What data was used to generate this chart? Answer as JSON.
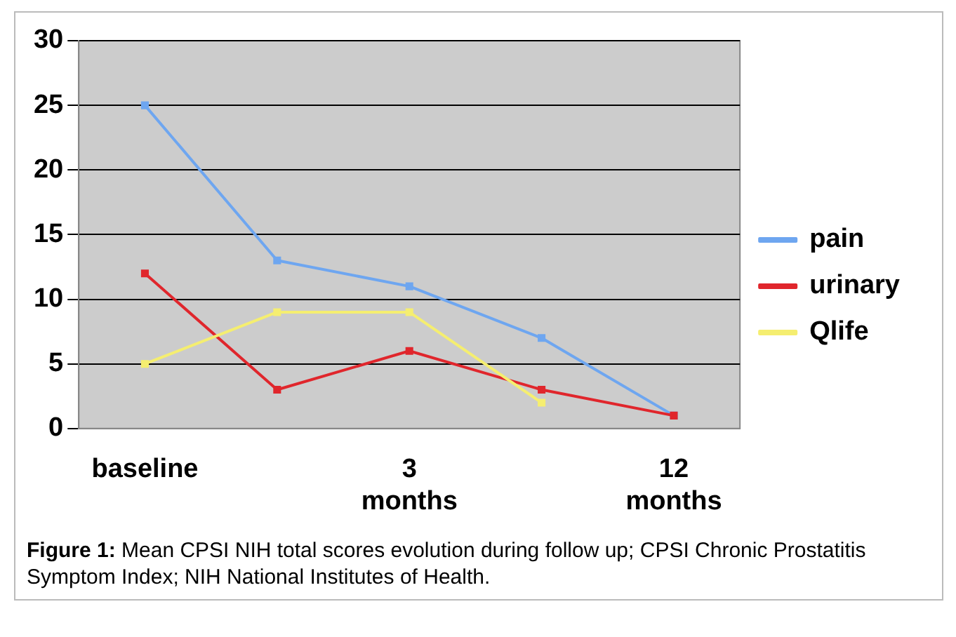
{
  "chart_data": {
    "type": "line",
    "categories": [
      "baseline",
      null,
      "3 months",
      null,
      "12 months"
    ],
    "series": [
      {
        "name": "pain",
        "color": "#6ea6f0",
        "values": [
          25,
          13,
          11,
          7,
          1
        ]
      },
      {
        "name": "urinary",
        "color": "#e0262c",
        "values": [
          12,
          3,
          6,
          3,
          1
        ]
      },
      {
        "name": "Qlife",
        "color": "#f5ee70",
        "values": [
          5,
          9,
          9,
          2,
          null
        ]
      }
    ],
    "ylim": [
      0,
      30
    ],
    "yticks": [
      0,
      5,
      10,
      15,
      20,
      25,
      30
    ],
    "grid": "y",
    "legend": "right",
    "marker": "square",
    "line_style": "solid",
    "annotations": [
      "Figure 1: Mean CPSI NIH total scores evolution during follow up; CPSI Chronic Prostatitis Symptom Index; NIH National Institutes of Health."
    ]
  }
}
